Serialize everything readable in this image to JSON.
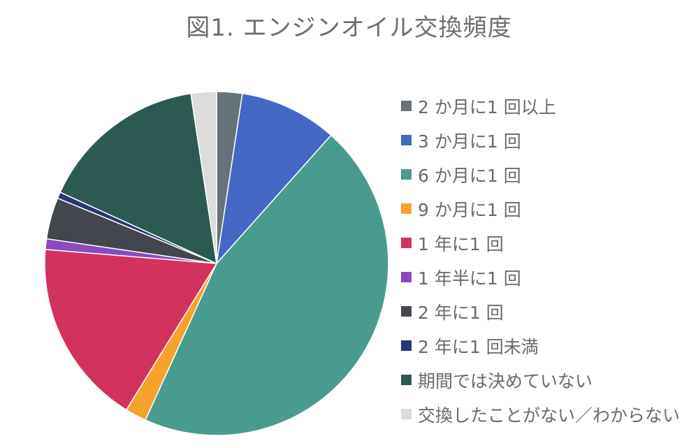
{
  "chart_data": {
    "type": "pie",
    "title": "図1. エンジンオイル交換頻度",
    "legend_position": "right",
    "categories": [
      "2 か月に1 回以上",
      "3 か月に1 回",
      "6 か月に1 回",
      "9 か月に1 回",
      "1 年に1 回",
      "1 年半に1 回",
      "2 年に1 回",
      "2 年に1 回未満",
      "期間では決めていない",
      "交換したことがない／わからない"
    ],
    "values": [
      2.4,
      9.2,
      45.2,
      2.0,
      17.5,
      1.0,
      3.9,
      0.6,
      15.8,
      2.4
    ],
    "colors": [
      "#66737a",
      "#4468c3",
      "#4a9b8f",
      "#f7a22c",
      "#d2325e",
      "#8a4bbf",
      "#43464d",
      "#27396e",
      "#2c5a53",
      "#dcdcdc"
    ]
  }
}
